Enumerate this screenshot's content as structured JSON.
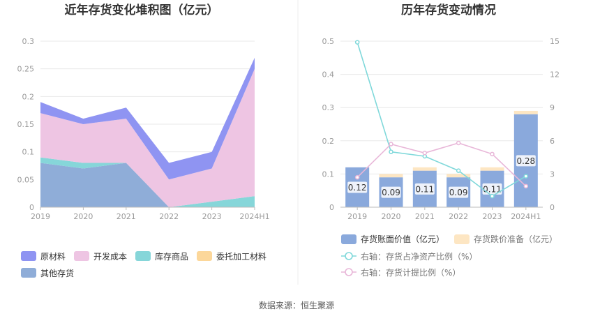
{
  "source_text": "数据来源：恒生聚源",
  "chart_data": [
    {
      "type": "area",
      "stacked": true,
      "title": "近年存货变化堆积图（亿元）",
      "categories": [
        "2019",
        "2020",
        "2021",
        "2022",
        "2023",
        "2024H1"
      ],
      "yticks": [
        "0",
        "0.05",
        "0.1",
        "0.15",
        "0.2",
        "0.25",
        "0.3"
      ],
      "ylim": [
        0,
        0.3
      ],
      "grid": true,
      "legend_position": "bottom",
      "series": [
        {
          "name": "其他存货",
          "color": "#8fadd8",
          "values": [
            0.08,
            0.07,
            0.08,
            0,
            0,
            0
          ]
        },
        {
          "name": "委托加工材料",
          "color": "#fcd79a",
          "values": [
            0,
            0,
            0,
            0,
            0,
            0
          ]
        },
        {
          "name": "库存商品",
          "color": "#86d6d9",
          "values": [
            0.01,
            0.01,
            0,
            0,
            0.01,
            0.02
          ]
        },
        {
          "name": "开发成本",
          "color": "#eec5e3",
          "values": [
            0.08,
            0.07,
            0.08,
            0.05,
            0.06,
            0.23
          ]
        },
        {
          "name": "原材料",
          "color": "#8f94f2",
          "values": [
            0.02,
            0.01,
            0.02,
            0.03,
            0.03,
            0.02
          ]
        }
      ],
      "legend_order": [
        "原材料",
        "开发成本",
        "库存商品",
        "委托加工材料",
        "其他存货"
      ]
    },
    {
      "type": "bar",
      "stacked": true,
      "title": "历年存货变动情况",
      "categories": [
        "2019",
        "2020",
        "2021",
        "2022",
        "2023",
        "2024H1"
      ],
      "yticks_left": [
        "0",
        "0.1",
        "0.2",
        "0.3",
        "0.4",
        "0.5"
      ],
      "ylim_left": [
        0,
        0.5
      ],
      "yticks_right": [
        "0",
        "3",
        "6",
        "9",
        "12",
        "15"
      ],
      "ylim_right": [
        0,
        15
      ],
      "grid": true,
      "legend_position": "bottom",
      "bar_series": [
        {
          "name": "存货账面价值（亿元）",
          "color": "#8aa9dc",
          "values": [
            0.12,
            0.09,
            0.11,
            0.09,
            0.11,
            0.28
          ],
          "labels": [
            "0.12",
            "0.09",
            "0.11",
            "0.09",
            "0.11",
            "0.28"
          ]
        },
        {
          "name": "存货跌价准备（亿元）",
          "color": "#fde6c3",
          "values": [
            0,
            0.01,
            0.01,
            0.01,
            0.01,
            0.01
          ]
        }
      ],
      "line_series": [
        {
          "name": "右轴：存货占净资产比例（%）",
          "color": "#7fd8da",
          "axis": "right",
          "values": [
            14.9,
            5.0,
            4.6,
            3.3,
            1.0,
            2.8
          ]
        },
        {
          "name": "右轴：存货计提比例（%）",
          "color": "#e8b6d8",
          "axis": "right",
          "values": [
            2.7,
            5.7,
            4.9,
            5.8,
            4.8,
            1.9
          ]
        }
      ]
    }
  ]
}
